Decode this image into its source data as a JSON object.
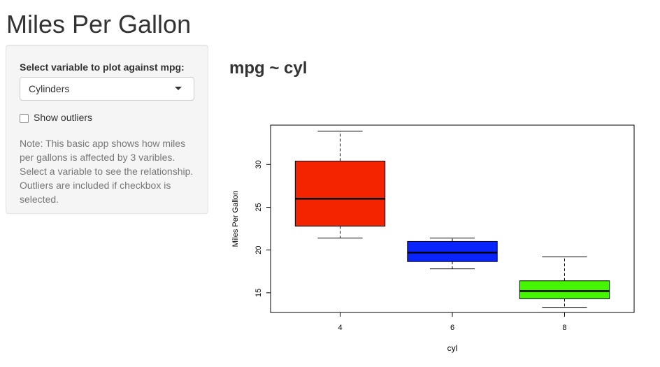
{
  "app": {
    "title": "Miles Per Gallon"
  },
  "sidebar": {
    "select_label": "Select variable to plot against mpg:",
    "select_value": "Cylinders",
    "checkbox_label": "Show outliers",
    "checkbox_checked": false,
    "note": "Note: This basic app shows how miles per gallons is affected by 3 varibles. Select a variable to see the relationship. Outliers are included if checkbox is selected."
  },
  "main": {
    "plot_title": "mpg ~ cyl"
  },
  "chart_data": {
    "type": "boxplot",
    "title": "",
    "xlabel": "cyl",
    "ylabel": "Miles Per Gallon",
    "ylim": [
      12.7,
      34.6
    ],
    "y_ticks": [
      15,
      20,
      25,
      30
    ],
    "grid": false,
    "categories": [
      "4",
      "6",
      "8"
    ],
    "boxes": [
      {
        "category": "4",
        "min": 21.4,
        "q1": 22.8,
        "median": 26.0,
        "q3": 30.4,
        "max": 33.9,
        "color": "#f52400"
      },
      {
        "category": "6",
        "min": 17.8,
        "q1": 18.65,
        "median": 19.7,
        "q3": 21.0,
        "max": 21.4,
        "color": "#0a24ff"
      },
      {
        "category": "8",
        "min": 13.3,
        "q1": 14.3,
        "median": 15.2,
        "q3": 16.4,
        "max": 19.2,
        "color": "#46f500"
      }
    ]
  }
}
